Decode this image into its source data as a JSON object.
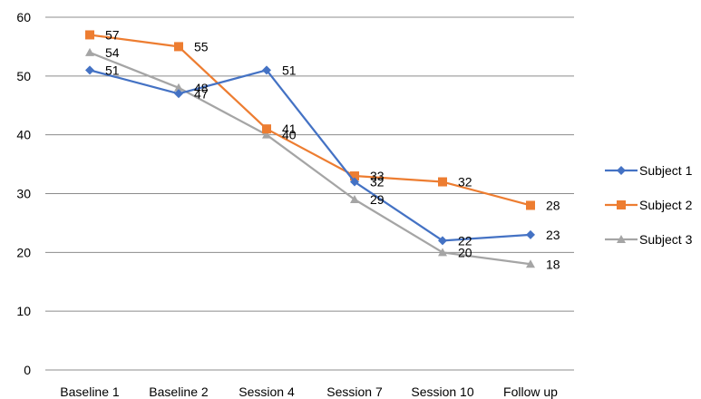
{
  "chart_data": {
    "type": "line",
    "categories": [
      "Baseline 1",
      "Baseline 2",
      "Session 4",
      "Session 7",
      "Session 10",
      "Follow up"
    ],
    "series": [
      {
        "name": "Subject 1",
        "values": [
          51,
          47,
          51,
          32,
          22,
          23
        ],
        "color": "#4472C4",
        "marker": "diamond"
      },
      {
        "name": "Subject 2",
        "values": [
          57,
          55,
          41,
          33,
          32,
          28
        ],
        "color": "#ED7D31",
        "marker": "square"
      },
      {
        "name": "Subject 3",
        "values": [
          54,
          48,
          40,
          29,
          20,
          18
        ],
        "color": "#A5A5A5",
        "marker": "triangle"
      }
    ],
    "ylim": [
      0,
      60
    ],
    "yticks": [
      0,
      10,
      20,
      30,
      40,
      50,
      60
    ],
    "grid": true,
    "legend_position": "right",
    "data_labels": true,
    "title": "",
    "xlabel": "",
    "ylabel": ""
  }
}
